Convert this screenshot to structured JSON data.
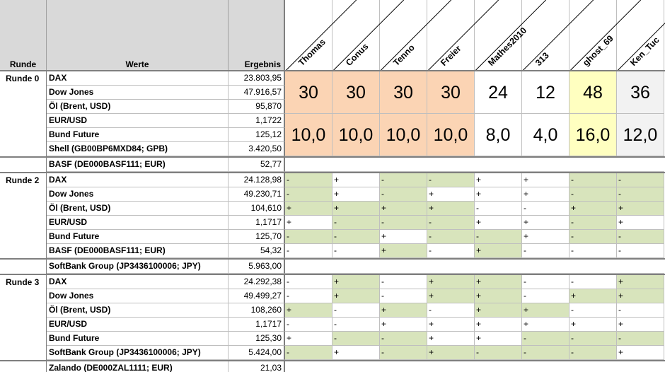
{
  "headers": {
    "runde": "Runde",
    "werte": "Werte",
    "ergebnis": "Ergebnis"
  },
  "players": [
    "Thomas",
    "Conus",
    "Tenno",
    "Freier",
    "Mathes2010",
    "313",
    "ghost_69",
    "Ken_Tuc"
  ],
  "rounds": [
    {
      "label": "Runde 0",
      "rows": [
        {
          "name": "DAX",
          "value": "23.803,95"
        },
        {
          "name": "Dow Jones",
          "value": "47.916,57"
        },
        {
          "name": "Öl (Brent, USD)",
          "value": "95,870"
        },
        {
          "name": "EUR/USD",
          "value": "1,1722"
        },
        {
          "name": "Bund Future",
          "value": "125,12"
        },
        {
          "name": "Shell (GB00BP6MXD84; GPB)",
          "value": "3.420,50"
        }
      ],
      "scores": [
        "30",
        "30",
        "30",
        "30",
        "24",
        "12",
        "48",
        "36"
      ],
      "score_colors": [
        "o",
        "o",
        "o",
        "o",
        "w",
        "w",
        "y",
        "gr"
      ],
      "points": [
        "10,0",
        "10,0",
        "10,0",
        "10,0",
        "8,0",
        "4,0",
        "16,0",
        "12,0"
      ],
      "point_colors": [
        "o",
        "o",
        "o",
        "o",
        "w",
        "w",
        "y",
        "gr"
      ]
    },
    {
      "label": "",
      "rows": [
        {
          "name": "BASF (DE000BASF111; EUR)",
          "value": "52,77"
        }
      ]
    },
    {
      "label": "Runde 2",
      "rows": [
        {
          "name": "DAX",
          "value": "24.128,98",
          "marks": [
            "-",
            "+",
            "-",
            "-",
            "+",
            "+",
            "-",
            "-"
          ],
          "colors": "GWGGWWGG"
        },
        {
          "name": "Dow Jones",
          "value": "49.230,71",
          "marks": [
            "-",
            "+",
            "-",
            "+",
            "+",
            "+",
            "-",
            "-"
          ],
          "colors": "GWGWWWGG"
        },
        {
          "name": "Öl (Brent, USD)",
          "value": "104,610",
          "marks": [
            "+",
            "+",
            "+",
            "+",
            "-",
            "-",
            "+",
            "+"
          ],
          "colors": "GGGGWWGG"
        },
        {
          "name": "EUR/USD",
          "value": "1,1717",
          "marks": [
            "+",
            "-",
            "-",
            "-",
            "+",
            "+",
            "-",
            "+"
          ],
          "colors": "WGGGWWGW"
        },
        {
          "name": "Bund Future",
          "value": "125,70",
          "marks": [
            "-",
            "-",
            "+",
            "-",
            "-",
            "+",
            "-",
            "-"
          ],
          "colors": "GGWGGWGG"
        },
        {
          "name": "BASF (DE000BASF111; EUR)",
          "value": "54,32",
          "marks": [
            "-",
            "-",
            "+",
            "-",
            "+",
            "-",
            "-",
            "-"
          ],
          "colors": "WWGWGWWW"
        }
      ]
    },
    {
      "label": "",
      "rows": [
        {
          "name": "SoftBank Group (JP3436100006; JPY)",
          "value": "5.963,00"
        }
      ]
    },
    {
      "label": "Runde 3",
      "rows": [
        {
          "name": "DAX",
          "value": "24.292,38",
          "marks": [
            "-",
            "+",
            "-",
            "+",
            "+",
            "-",
            "-",
            "+"
          ],
          "colors": "WGWGGWWG"
        },
        {
          "name": "Dow Jones",
          "value": "49.499,27",
          "marks": [
            "-",
            "+",
            "-",
            "+",
            "+",
            "-",
            "+",
            "+"
          ],
          "colors": "WGWGGWGG"
        },
        {
          "name": "Öl (Brent, USD)",
          "value": "108,260",
          "marks": [
            "+",
            "-",
            "+",
            "-",
            "+",
            "+",
            "-",
            "-"
          ],
          "colors": "GWGWGGWW"
        },
        {
          "name": "EUR/USD",
          "value": "1,1717",
          "marks": [
            "-",
            "-",
            "+",
            "+",
            "+",
            "+",
            "+",
            "+"
          ],
          "colors": "WWWWWWWW"
        },
        {
          "name": "Bund Future",
          "value": "125,30",
          "marks": [
            "+",
            "-",
            "-",
            "+",
            "+",
            "-",
            "-",
            "-"
          ],
          "colors": "WGGWWGGG"
        },
        {
          "name": "SoftBank Group (JP3436100006; JPY)",
          "value": "5.424,00",
          "marks": [
            "-",
            "+",
            "-",
            "+",
            "-",
            "-",
            "-",
            "+"
          ],
          "colors": "GWGGGGGW"
        }
      ]
    },
    {
      "label": "",
      "rows": [
        {
          "name": "Zalando (DE000ZAL1111; EUR)",
          "value": "21,03"
        }
      ]
    }
  ],
  "colors": {
    "header_bg": "#d9d9d9",
    "green": "#d8e4bc",
    "orange": "#fbd4b4",
    "yellow": "#ffffc0",
    "grid": "#bfbfbf",
    "separator": "#7f7f7f"
  }
}
